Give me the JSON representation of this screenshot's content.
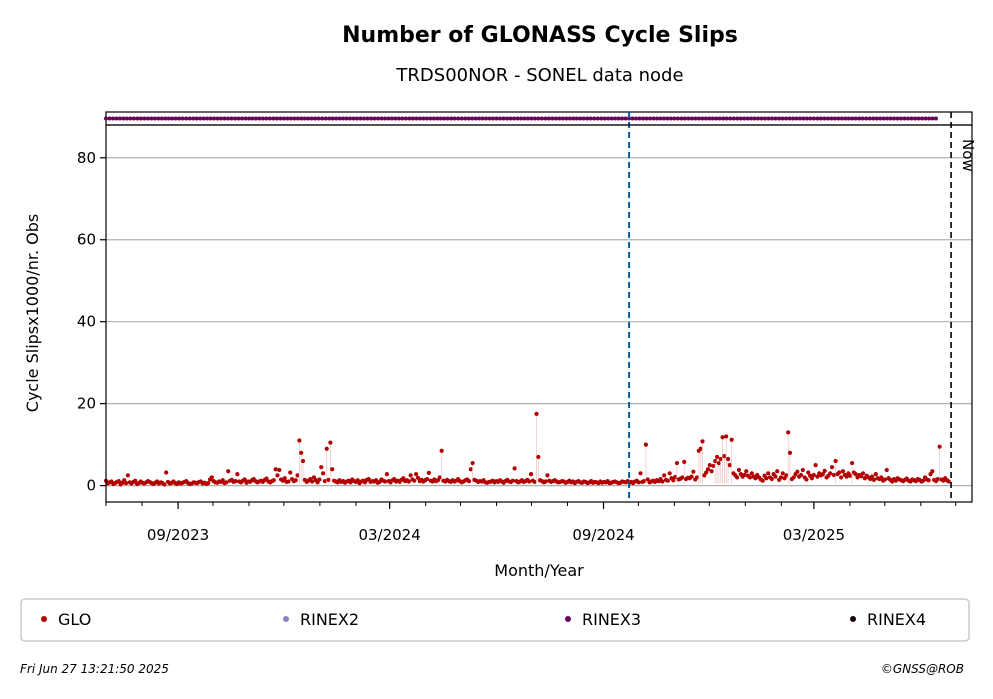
{
  "chart_data": {
    "type": "scatter",
    "title": "Number of GLONASS Cycle Slips",
    "subtitle": "TRDS00NOR - SONEL data node",
    "xlabel": "Month/Year",
    "ylabel": "Cycle Slipsx1000/nr. Obs",
    "x_range": [
      "2023-07-01",
      "2025-07-15"
    ],
    "ylim": [
      -4,
      88
    ],
    "yticks": [
      0,
      20,
      40,
      60,
      80
    ],
    "xticks": [
      {
        "date": "2023-09-01",
        "label": "09/2023"
      },
      {
        "date": "2024-03-01",
        "label": "03/2024"
      },
      {
        "date": "2024-09-01",
        "label": "09/2024"
      },
      {
        "date": "2025-03-01",
        "label": "03/2025"
      }
    ],
    "grid": "horizontal",
    "marker_line": {
      "date": "2024-09-23",
      "color": "#0a5aa0"
    },
    "now_line": {
      "date": "2025-06-27",
      "label": "Now"
    },
    "series": [
      {
        "name": "GLO",
        "color": "#b30000",
        "date_start": "2023-07-01",
        "values": [
          1.2,
          0.5,
          0.8,
          1.0,
          0.4,
          0.6,
          0.9,
          1.1,
          0.3,
          0.7,
          1.3,
          0.6,
          2.5,
          0.8,
          0.5,
          0.9,
          1.2,
          0.4,
          0.6,
          1.0,
          0.7,
          0.5,
          0.8,
          1.1,
          0.9,
          0.6,
          0.4,
          0.7,
          1.0,
          0.5,
          0.8,
          0.6,
          0.3,
          3.2,
          0.9,
          0.5,
          0.7,
          1.0,
          0.6,
          0.4,
          0.8,
          0.5,
          0.7,
          0.9,
          1.1,
          0.6,
          0.4,
          0.5,
          0.8,
          0.7,
          0.6,
          0.9,
          1.0,
          0.5,
          0.7,
          0.4,
          0.6,
          1.5,
          2.0,
          1.1,
          0.8,
          0.7,
          1.0,
          0.9,
          1.3,
          0.6,
          0.8,
          3.5,
          1.2,
          1.4,
          0.9,
          1.1,
          2.8,
          1.0,
          0.8,
          1.2,
          1.5,
          0.7,
          1.0,
          0.9,
          1.3,
          1.6,
          1.1,
          0.8,
          1.0,
          1.2,
          0.9,
          1.4,
          1.7,
          1.0,
          0.8,
          1.1,
          1.3,
          4.0,
          2.5,
          3.8,
          1.5,
          1.2,
          1.8,
          0.9,
          1.0,
          3.2,
          1.6,
          1.1,
          1.3,
          2.5,
          11.0,
          8.0,
          6.0,
          1.4,
          0.9,
          1.2,
          1.6,
          1.0,
          2.0,
          1.3,
          0.8,
          1.5,
          4.5,
          3.0,
          1.1,
          9.0,
          1.4,
          10.5,
          4.0,
          1.2,
          1.0,
          0.8,
          1.3,
          0.9,
          1.1,
          0.7,
          1.0,
          1.2,
          0.8,
          1.5,
          1.1,
          0.9,
          1.3,
          0.6,
          1.0,
          1.2,
          0.8,
          1.4,
          1.6,
          0.9,
          1.1,
          1.0,
          1.3,
          0.7,
          0.9,
          1.5,
          1.2,
          1.0,
          2.8,
          1.1,
          0.8,
          1.3,
          1.6,
          1.0,
          1.2,
          0.9,
          1.4,
          1.8,
          1.1,
          1.3,
          1.0,
          2.5,
          1.5,
          1.2,
          2.8,
          1.9,
          1.1,
          1.4,
          1.0,
          1.3,
          1.6,
          3.1,
          1.2,
          1.0,
          1.5,
          1.1,
          1.3,
          2.0,
          8.5,
          1.2,
          1.0,
          1.4,
          1.1,
          0.9,
          1.3,
          1.0,
          1.2,
          1.6,
          1.1,
          0.8,
          1.0,
          1.3,
          1.5,
          1.1,
          4.0,
          5.5,
          1.4,
          1.2,
          0.9,
          1.1,
          1.0,
          1.3,
          0.8,
          0.7,
          0.9,
          1.0,
          1.2,
          0.8,
          1.1,
          0.9,
          1.3,
          1.0,
          0.7,
          1.1,
          1.4,
          1.0,
          0.9,
          1.2,
          4.2,
          1.1,
          0.8,
          1.0,
          1.3,
          0.9,
          1.1,
          1.4,
          1.0,
          2.8,
          1.2,
          0.9,
          17.5,
          7.0,
          1.3,
          1.1,
          0.8,
          1.0,
          2.5,
          1.2,
          0.9,
          1.1,
          1.3,
          1.0,
          0.8,
          0.9,
          1.1,
          1.0,
          0.7,
          0.9,
          1.2,
          0.8,
          1.0,
          0.6,
          0.9,
          1.1,
          0.8,
          0.7,
          1.0,
          0.9,
          0.6,
          0.8,
          1.1,
          0.7,
          0.9,
          0.8,
          0.6,
          1.0,
          0.7,
          0.9,
          0.8,
          1.1,
          0.6,
          0.7,
          0.9,
          1.0,
          0.8,
          0.6,
          0.7,
          1.0,
          0.9,
          0.8,
          1.1,
          0.7,
          0.9,
          0.6,
          1.0,
          1.2,
          0.8,
          3.0,
          0.9,
          1.1,
          10.0,
          1.5,
          0.8,
          1.0,
          1.2,
          0.9,
          1.3,
          1.1,
          1.6,
          1.0,
          2.5,
          1.4,
          1.2,
          3.0,
          1.8,
          1.3,
          2.1,
          5.5,
          1.5,
          1.7,
          2.0,
          5.8,
          1.6,
          1.9,
          1.8,
          2.2,
          3.4,
          1.5,
          2.0,
          8.5,
          9.0,
          10.8,
          2.5,
          3.2,
          4.0,
          5.0,
          3.5,
          4.8,
          6.0,
          7.0,
          5.5,
          6.5,
          11.8,
          7.2,
          12.0,
          6.5,
          5.0,
          11.2,
          3.0,
          2.5,
          2.0,
          3.8,
          2.8,
          2.2,
          2.6,
          3.5,
          2.4,
          2.0,
          3.0,
          2.2,
          1.8,
          2.6,
          2.0,
          1.5,
          1.2,
          2.4,
          1.8,
          3.0,
          2.0,
          1.6,
          2.8,
          2.2,
          3.5,
          1.4,
          2.0,
          3.0,
          1.8,
          2.5,
          13.0,
          8.0,
          1.6,
          2.0,
          2.8,
          3.4,
          2.2,
          2.6,
          3.8,
          2.0,
          1.5,
          3.2,
          2.4,
          1.8,
          2.6,
          5.0,
          2.2,
          3.0,
          2.5,
          2.8,
          3.6,
          2.0,
          2.4,
          3.0,
          4.5,
          2.6,
          6.0,
          2.8,
          3.2,
          2.0,
          3.5,
          2.6,
          2.2,
          3.0,
          2.4,
          5.5,
          3.2,
          2.8,
          2.0,
          2.6,
          2.3,
          3.0,
          1.8,
          2.4,
          2.0,
          1.6,
          2.2,
          1.4,
          2.8,
          1.8,
          1.6,
          2.0,
          1.2,
          1.5,
          3.8,
          1.8,
          1.4,
          1.0,
          1.6,
          1.2,
          1.8,
          1.5,
          1.3,
          1.1,
          1.4,
          1.7,
          1.2,
          1.0,
          1.5,
          1.3,
          1.1,
          1.6,
          1.4,
          1.0,
          1.2,
          2.0,
          1.5,
          1.3,
          2.8,
          3.5,
          1.4,
          1.1,
          1.6,
          9.5,
          1.5,
          1.2,
          1.8,
          1.3,
          1.0
        ]
      },
      {
        "name": "RINEX2",
        "color": "#8a80c0",
        "values": []
      },
      {
        "name": "RINEX3",
        "color": "#6a0060",
        "date_start": "2023-07-01",
        "date_end": "2025-06-15",
        "y_band": "top"
      },
      {
        "name": "RINEX4",
        "color": "#1a0010",
        "values": []
      }
    ],
    "legend_position": "bottom",
    "footer_left": "Fri Jun 27 13:21:50 2025",
    "footer_right": "©GNSS@ROB"
  }
}
